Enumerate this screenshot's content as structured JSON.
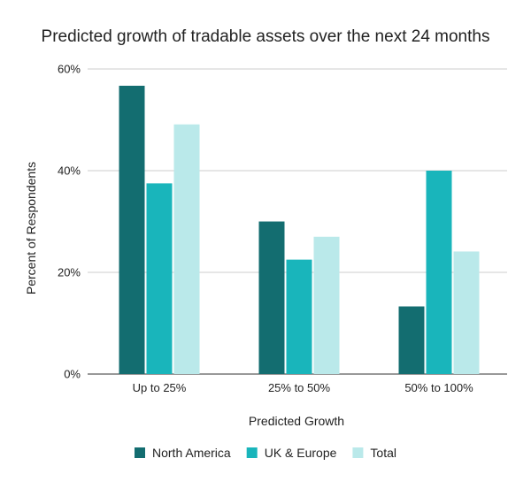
{
  "chart_data": {
    "type": "bar",
    "title": "Predicted growth of tradable assets over the next 24 months",
    "xlabel": "Predicted Growth",
    "ylabel": "Percent of Respondents",
    "categories": [
      "Up to 25%",
      "25% to 50%",
      "50% to 100%"
    ],
    "series": [
      {
        "name": "North America",
        "values": [
          56.7,
          30.0,
          13.3
        ],
        "color": "#136d70"
      },
      {
        "name": "UK & Europe",
        "values": [
          37.5,
          22.5,
          40.0
        ],
        "color": "#19b5bb"
      },
      {
        "name": "Total",
        "values": [
          49.1,
          27.0,
          24.1
        ],
        "color": "#bae9ea"
      }
    ],
    "ylim": [
      0,
      60
    ],
    "yticks": [
      0,
      20,
      40,
      60
    ],
    "ytick_labels": [
      "0%",
      "20%",
      "40%",
      "60%"
    ],
    "grid": true,
    "legend": "bottom"
  }
}
